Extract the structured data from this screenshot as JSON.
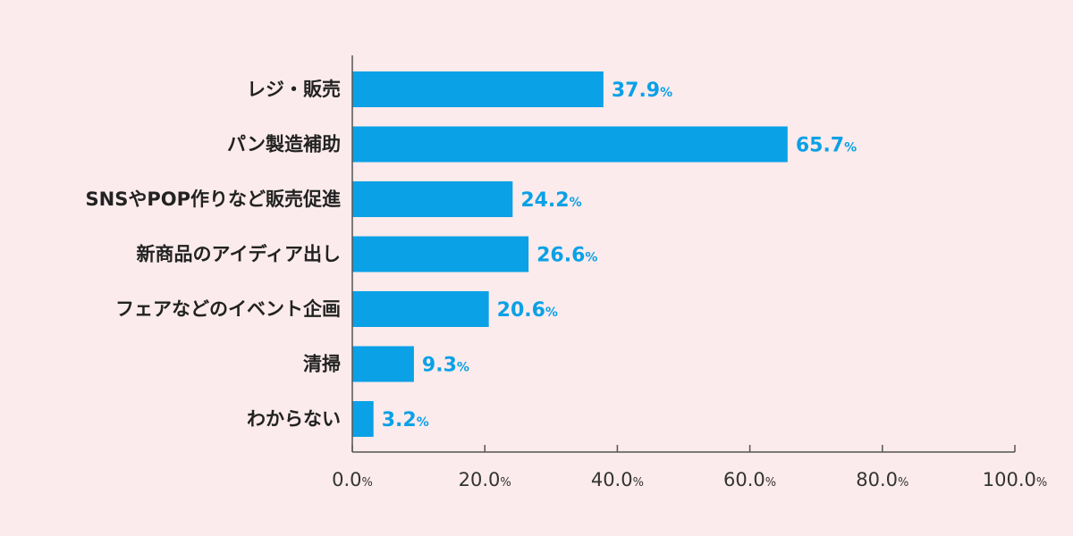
{
  "colors": {
    "background": "#fcebec",
    "bar": "#0aa1e6",
    "value_label": "#0aa1e6",
    "axis": "#555555"
  },
  "chart_data": {
    "type": "bar",
    "orientation": "horizontal",
    "categories": [
      "レジ・販売",
      "パン製造補助",
      "SNSやPOP作りなど販売促進",
      "新商品のアイディア出し",
      "フェアなどのイベント企画",
      "清掃",
      "わからない"
    ],
    "values": [
      37.9,
      65.7,
      24.2,
      26.6,
      20.6,
      9.3,
      3.2
    ],
    "value_labels": [
      "37.9",
      "65.7",
      "24.2",
      "26.6",
      "20.6",
      "9.3",
      "3.2"
    ],
    "value_suffix": "%",
    "xlim": [
      0,
      100
    ],
    "x_ticks": [
      "0.0",
      "20.0",
      "40.0",
      "60.0",
      "80.0",
      "100.0"
    ],
    "tick_suffix": "%",
    "grid": false,
    "legend": "none"
  }
}
